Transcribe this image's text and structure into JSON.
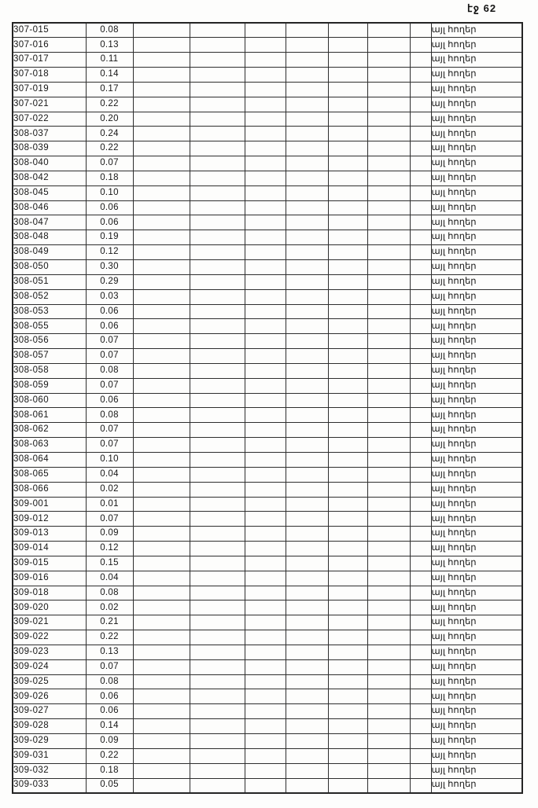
{
  "page": {
    "number_label": "էջ 62"
  },
  "table": {
    "category_label": "այլ հողեր",
    "rows": [
      {
        "code": "307-015",
        "area": "0.08",
        "category": "այլ հողեր"
      },
      {
        "code": "307-016",
        "area": "0.13",
        "category": "այլ հողեր"
      },
      {
        "code": "307-017",
        "area": "0.11",
        "category": "այլ հողեր"
      },
      {
        "code": "307-018",
        "area": "0.14",
        "category": "այլ հողեր"
      },
      {
        "code": "307-019",
        "area": "0.17",
        "category": "այլ հողեր"
      },
      {
        "code": "307-021",
        "area": "0.22",
        "category": "այլ հողեր"
      },
      {
        "code": "307-022",
        "area": "0.20",
        "category": "այլ հողեր"
      },
      {
        "code": "308-037",
        "area": "0.24",
        "category": "այլ հողեր"
      },
      {
        "code": "308-039",
        "area": "0.22",
        "category": "այլ հողեր"
      },
      {
        "code": "308-040",
        "area": "0.07",
        "category": "այլ հողեր"
      },
      {
        "code": "308-042",
        "area": "0.18",
        "category": "այլ հողեր"
      },
      {
        "code": "308-045",
        "area": "0.10",
        "category": "այլ հողեր"
      },
      {
        "code": "308-046",
        "area": "0.06",
        "category": "այլ հողեր"
      },
      {
        "code": "308-047",
        "area": "0.06",
        "category": "այլ հողեր"
      },
      {
        "code": "308-048",
        "area": "0.19",
        "category": "այլ հողեր"
      },
      {
        "code": "308-049",
        "area": "0.12",
        "category": "այլ հողեր"
      },
      {
        "code": "308-050",
        "area": "0.30",
        "category": "այլ հողեր"
      },
      {
        "code": "308-051",
        "area": "0.29",
        "category": "այլ հողեր"
      },
      {
        "code": "308-052",
        "area": "0.03",
        "category": "այլ հողեր"
      },
      {
        "code": "308-053",
        "area": "0.06",
        "category": "այլ հողեր"
      },
      {
        "code": "308-055",
        "area": "0.06",
        "category": "այլ հողեր"
      },
      {
        "code": "308-056",
        "area": "0.07",
        "category": "այլ հողեր"
      },
      {
        "code": "308-057",
        "area": "0.07",
        "category": "այլ հողեր"
      },
      {
        "code": "308-058",
        "area": "0.08",
        "category": "այլ հողեր"
      },
      {
        "code": "308-059",
        "area": "0.07",
        "category": "այլ հողեր"
      },
      {
        "code": "308-060",
        "area": "0.06",
        "category": "այլ հողեր"
      },
      {
        "code": "308-061",
        "area": "0.08",
        "category": "այլ հողեր"
      },
      {
        "code": "308-062",
        "area": "0.07",
        "category": "այլ հողեր"
      },
      {
        "code": "308-063",
        "area": "0.07",
        "category": "այլ հողեր"
      },
      {
        "code": "308-064",
        "area": "0.10",
        "category": "այլ հողեր"
      },
      {
        "code": "308-065",
        "area": "0.04",
        "category": "այլ հողեր"
      },
      {
        "code": "308-066",
        "area": "0.02",
        "category": "այլ հողեր"
      },
      {
        "code": "309-001",
        "area": "0.01",
        "category": "այլ հողեր"
      },
      {
        "code": "309-012",
        "area": "0.07",
        "category": "այլ հողեր"
      },
      {
        "code": "309-013",
        "area": "0.09",
        "category": "այլ հողեր"
      },
      {
        "code": "309-014",
        "area": "0.12",
        "category": "այլ հողեր"
      },
      {
        "code": "309-015",
        "area": "0.15",
        "category": "այլ հողեր"
      },
      {
        "code": "309-016",
        "area": "0.04",
        "category": "այլ հողեր"
      },
      {
        "code": "309-018",
        "area": "0.08",
        "category": "այլ հողեր"
      },
      {
        "code": "309-020",
        "area": "0.02",
        "category": "այլ հողեր"
      },
      {
        "code": "309-021",
        "area": "0.21",
        "category": "այլ հողեր"
      },
      {
        "code": "309-022",
        "area": "0.22",
        "category": "այլ հողեր"
      },
      {
        "code": "309-023",
        "area": "0.13",
        "category": "այլ հողեր"
      },
      {
        "code": "309-024",
        "area": "0.07",
        "category": "այլ հողեր"
      },
      {
        "code": "309-025",
        "area": "0.08",
        "category": "այլ հողեր"
      },
      {
        "code": "309-026",
        "area": "0.06",
        "category": "այլ հողեր"
      },
      {
        "code": "309-027",
        "area": "0.06",
        "category": "այլ հողեր"
      },
      {
        "code": "309-028",
        "area": "0.14",
        "category": "այլ հողեր"
      },
      {
        "code": "309-029",
        "area": "0.09",
        "category": "այլ հողեր"
      },
      {
        "code": "309-031",
        "area": "0.22",
        "category": "այլ հողեր"
      },
      {
        "code": "309-032",
        "area": "0.18",
        "category": "այլ հողեր"
      },
      {
        "code": "309-033",
        "area": "0.05",
        "category": "այլ հողեր"
      }
    ]
  }
}
